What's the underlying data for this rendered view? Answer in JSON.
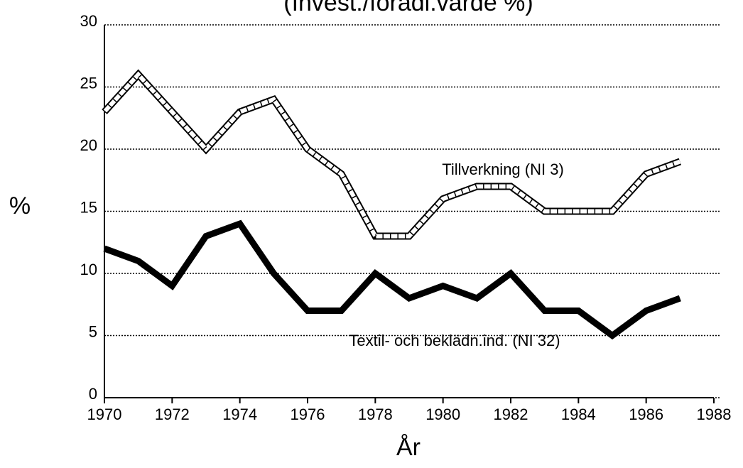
{
  "chart_data": {
    "type": "line",
    "title": "(Invest./förädl.värde %)",
    "x_label": "År",
    "y_label": "%",
    "x": [
      1970,
      1971,
      1972,
      1973,
      1974,
      1975,
      1976,
      1977,
      1978,
      1979,
      1980,
      1981,
      1982,
      1983,
      1984,
      1985,
      1986,
      1987
    ],
    "series": [
      {
        "name": "Tillverkning (NI 3)",
        "color": "#000000",
        "line_style": "double",
        "values": [
          23,
          26,
          23,
          20,
          23,
          24,
          20,
          18,
          13,
          13,
          16,
          17,
          17,
          15,
          15,
          15,
          18,
          19
        ]
      },
      {
        "name": "Textil- och beklädn.ind. (NI 32)",
        "color": "#000000",
        "line_style": "solid",
        "values": [
          12,
          11,
          9,
          13,
          14,
          10,
          7,
          7,
          10,
          8,
          9,
          8,
          10,
          7,
          7,
          5,
          7,
          8
        ]
      }
    ],
    "xlim": [
      1970,
      1988
    ],
    "xticks": [
      1970,
      1972,
      1974,
      1976,
      1978,
      1980,
      1982,
      1984,
      1986,
      1988
    ],
    "ylim": [
      0,
      30
    ],
    "yticks": [
      0,
      5,
      10,
      15,
      20,
      25,
      30
    ],
    "grid": true,
    "grid_style": "dotted"
  }
}
